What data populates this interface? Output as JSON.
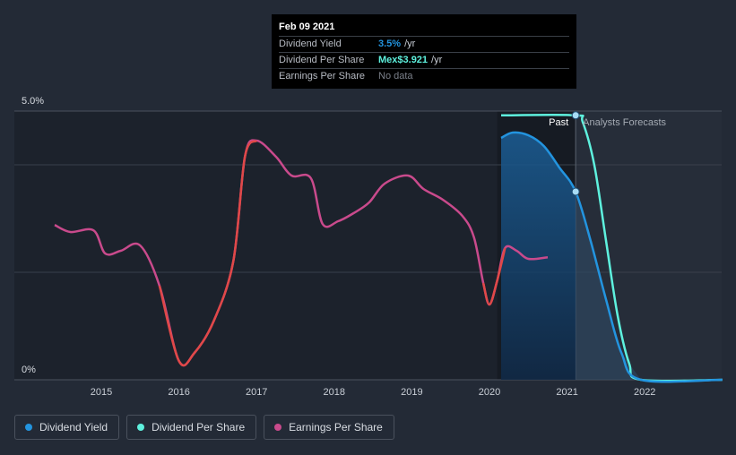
{
  "chart_data": {
    "type": "line",
    "y_axis": {
      "ticks": [
        "0%",
        "5.0%"
      ],
      "ylim": [
        0,
        5.0
      ]
    },
    "x_axis": {
      "ticks": [
        "2015",
        "2016",
        "2017",
        "2018",
        "2019",
        "2020",
        "2021",
        "2022"
      ],
      "xlim": [
        2014.0,
        2023.0
      ]
    },
    "sections": {
      "past_label": "Past",
      "forecast_label": "Analysts Forecasts",
      "divider_x": 2021.11
    },
    "series": [
      {
        "name": "Dividend Yield",
        "color": "#2394df",
        "points": [
          [
            2020.15,
            4.5
          ],
          [
            2020.3,
            4.6
          ],
          [
            2020.5,
            4.55
          ],
          [
            2020.7,
            4.35
          ],
          [
            2020.9,
            3.95
          ],
          [
            2021.11,
            3.5
          ],
          [
            2021.3,
            2.6
          ],
          [
            2021.5,
            1.5
          ],
          [
            2021.7,
            0.5
          ],
          [
            2021.95,
            0.0
          ],
          [
            2023.0,
            0.0
          ]
        ]
      },
      {
        "name": "Dividend Per Share",
        "color": "#5ef1de",
        "points": [
          [
            2020.15,
            4.92
          ],
          [
            2021.11,
            4.92
          ],
          [
            2021.2,
            4.8
          ],
          [
            2021.35,
            4.0
          ],
          [
            2021.5,
            2.6
          ],
          [
            2021.65,
            1.2
          ],
          [
            2021.8,
            0.3
          ],
          [
            2021.95,
            0.0
          ],
          [
            2023.0,
            0.0
          ]
        ]
      },
      {
        "name": "Earnings Per Share",
        "color": "#c94a8c",
        "points": [
          [
            2014.4,
            2.88
          ],
          [
            2014.6,
            2.75
          ],
          [
            2014.9,
            2.78
          ],
          [
            2015.05,
            2.35
          ],
          [
            2015.25,
            2.4
          ],
          [
            2015.5,
            2.5
          ],
          [
            2015.75,
            1.75
          ],
          [
            2016.0,
            0.35
          ],
          [
            2016.2,
            0.5
          ],
          [
            2016.45,
            1.1
          ],
          [
            2016.7,
            2.2
          ],
          [
            2016.85,
            4.15
          ],
          [
            2017.0,
            4.45
          ],
          [
            2017.25,
            4.15
          ],
          [
            2017.45,
            3.8
          ],
          [
            2017.7,
            3.75
          ],
          [
            2017.85,
            2.9
          ],
          [
            2018.05,
            2.95
          ],
          [
            2018.25,
            3.1
          ],
          [
            2018.45,
            3.3
          ],
          [
            2018.65,
            3.65
          ],
          [
            2018.95,
            3.8
          ],
          [
            2019.15,
            3.55
          ],
          [
            2019.4,
            3.35
          ],
          [
            2019.65,
            3.05
          ],
          [
            2019.8,
            2.65
          ],
          [
            2019.92,
            1.8
          ],
          [
            2020.0,
            1.4
          ],
          [
            2020.1,
            1.85
          ],
          [
            2020.2,
            2.45
          ],
          [
            2020.35,
            2.4
          ],
          [
            2020.5,
            2.25
          ],
          [
            2020.75,
            2.28
          ]
        ]
      }
    ],
    "markers": [
      {
        "series": "Dividend Per Share",
        "x": 2021.11,
        "y": 4.92
      },
      {
        "series": "Dividend Yield",
        "x": 2021.11,
        "y": 3.5
      }
    ],
    "tooltip": {
      "date": "Feb 09 2021",
      "rows": [
        {
          "label": "Dividend Yield",
          "value": "3.5%",
          "unit": "/yr",
          "color": "#2394df"
        },
        {
          "label": "Dividend Per Share",
          "value": "Mex$3.921",
          "unit": "/yr",
          "color": "#5ef1de"
        },
        {
          "label": "Earnings Per Share",
          "value": "No data",
          "unit": "",
          "color": "#7b808a"
        }
      ]
    },
    "legend": [
      {
        "label": "Dividend Yield",
        "color": "#2394df"
      },
      {
        "label": "Dividend Per Share",
        "color": "#5ef1de"
      },
      {
        "label": "Earnings Per Share",
        "color": "#c94a8c"
      }
    ]
  }
}
